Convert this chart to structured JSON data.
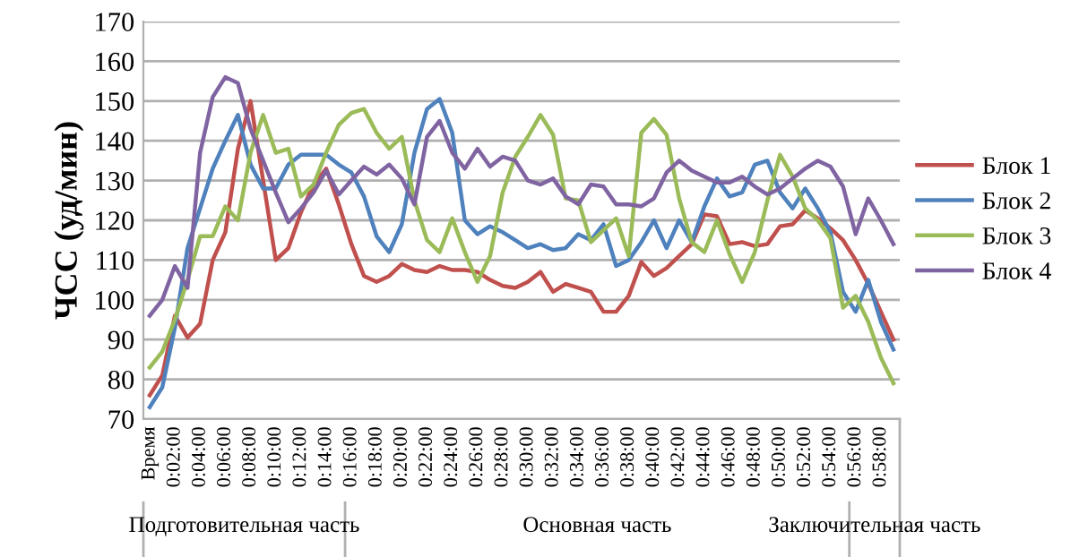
{
  "chart_data": {
    "type": "line",
    "ylabel": "ЧСС (уд/мин)",
    "categories": [
      "Время",
      null,
      "0:02:00",
      null,
      "0:04:00",
      null,
      "0:06:00",
      null,
      "0:08:00",
      null,
      "0:10:00",
      null,
      "0:12:00",
      null,
      "0:14:00",
      null,
      "0:16:00",
      null,
      "0:18:00",
      null,
      "0:20:00",
      null,
      "0:22:00",
      null,
      "0:24:00",
      null,
      "0:26:00",
      null,
      "0:28:00",
      null,
      "0:30:00",
      null,
      "0:32:00",
      null,
      "0:34:00",
      null,
      "0:36:00",
      null,
      "0:38:00",
      null,
      "0:40:00",
      null,
      "0:42:00",
      null,
      "0:44:00",
      null,
      "0:46:00",
      null,
      "0:48:00",
      null,
      "0:50:00",
      null,
      "0:52:00",
      null,
      "0:54:00",
      null,
      "0:56:00",
      null,
      "0:58:00",
      null
    ],
    "series": [
      {
        "name": "Блок 1",
        "color": "#c0504d",
        "values": [
          76,
          81,
          96,
          90.5,
          94,
          110,
          117,
          138,
          150,
          130,
          110,
          113,
          122,
          129,
          133,
          124,
          114,
          106,
          104.5,
          106,
          109,
          107.5,
          107,
          108.5,
          107.5,
          107.5,
          107,
          105,
          103.5,
          103,
          104.5,
          107,
          102,
          104,
          103,
          102,
          97,
          97,
          101,
          109.5,
          106,
          108,
          111,
          114,
          121.5,
          121,
          114,
          114.5,
          113.5,
          114,
          118.5,
          119,
          122.5,
          120.5,
          118,
          115,
          110,
          104,
          97,
          90
        ]
      },
      {
        "name": "Блок 2",
        "color": "#4f81bd",
        "values": [
          73,
          78,
          93,
          113,
          123,
          133,
          140,
          146.5,
          134,
          128,
          128,
          134,
          136.5,
          136.5,
          136.5,
          134,
          132,
          126,
          116,
          112,
          119,
          137,
          148,
          150.5,
          142,
          120,
          116.5,
          118.5,
          117,
          115,
          113,
          114,
          112.5,
          113,
          116.5,
          115,
          119,
          108.5,
          110,
          114.5,
          120,
          113,
          120,
          114.5,
          123.5,
          130.5,
          126,
          127,
          134,
          135,
          127,
          123,
          128,
          123,
          117,
          102,
          97,
          105,
          94.5,
          87.5
        ]
      },
      {
        "name": "Блок 3",
        "color": "#9bbb59",
        "values": [
          83,
          87,
          95,
          105,
          116,
          116,
          123.5,
          120,
          137,
          146.5,
          137,
          138,
          126,
          129,
          137,
          144,
          147,
          148,
          142,
          138,
          141,
          125,
          115,
          112,
          120.5,
          112,
          104.5,
          111,
          127,
          136,
          141,
          146.5,
          141.5,
          125.5,
          125,
          114.5,
          117.5,
          120.5,
          111,
          142,
          145.5,
          141.5,
          125.5,
          114.5,
          112,
          120,
          111.5,
          104.5,
          112,
          125,
          136.5,
          131,
          123,
          120,
          115.5,
          98,
          101,
          94.5,
          85.5,
          79
        ]
      },
      {
        "name": "Блок 4",
        "color": "#8064a2",
        "values": [
          96,
          100,
          108.5,
          103,
          137,
          151,
          156,
          154.5,
          143,
          135,
          127,
          119.5,
          123,
          127,
          132.5,
          126.5,
          130,
          133.5,
          131.5,
          134,
          130.5,
          124,
          141,
          145,
          137,
          133,
          138,
          133.5,
          136,
          135,
          130,
          129,
          130.5,
          126,
          124,
          129,
          128.5,
          124,
          124,
          123.5,
          125.5,
          132,
          135,
          132.5,
          131,
          129.5,
          129.5,
          131,
          128.5,
          126.5,
          128,
          130.5,
          133,
          135,
          133.5,
          128.5,
          116.5,
          125.5,
          120,
          114
        ]
      }
    ],
    "annotations": [
      "Подготовительная часть",
      "Основная часть",
      "Заключительная часть"
    ],
    "ylim": [
      70,
      170
    ],
    "yticks": [
      70,
      80,
      90,
      100,
      110,
      120,
      130,
      140,
      150,
      160,
      170
    ],
    "grid": "y",
    "legend": "right",
    "marker": "none",
    "line_style": "solid"
  }
}
